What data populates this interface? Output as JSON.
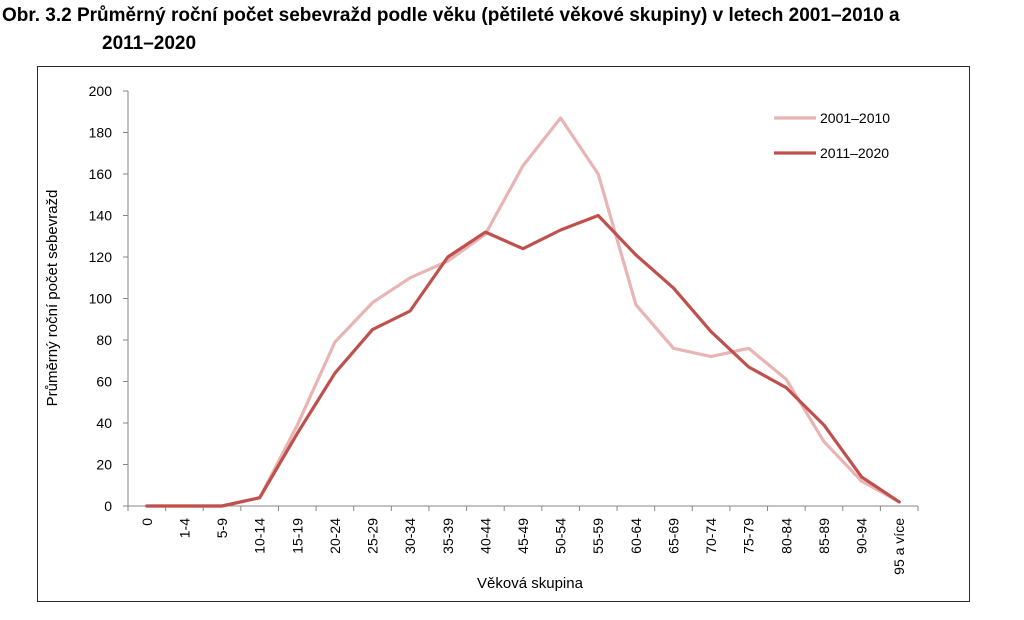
{
  "title_line1": "Obr. 3.2 Průměrný roční počet sebevražd podle věku (pětileté věkové skupiny) v letech 2001–2010 a",
  "title_line2": "2011–2020",
  "chart_data": {
    "type": "line",
    "title": "Obr. 3.2 Průměrný roční počet sebevražd podle věku (pětileté věkové skupiny) v letech 2001–2010 a 2011–2020",
    "xlabel": "Věková skupina",
    "ylabel": "Průměrný roční počet sebevražd",
    "ylim": [
      0,
      200
    ],
    "yticks": [
      0,
      20,
      40,
      60,
      80,
      100,
      120,
      140,
      160,
      180,
      200
    ],
    "grid": false,
    "legend_position": "top-right",
    "categories": [
      "0",
      "1-4",
      "5-9",
      "10-14",
      "15-19",
      "20-24",
      "25-29",
      "30-34",
      "35-39",
      "40-44",
      "45-49",
      "50-54",
      "55-59",
      "60-64",
      "65-69",
      "70-74",
      "75-79",
      "80-84",
      "85-89",
      "90-94",
      "95 a více"
    ],
    "series": [
      {
        "name": "2001–2010",
        "color": "#e8b4b4",
        "values": [
          0,
          0,
          0,
          4,
          39,
          79,
          98,
          110,
          118,
          131,
          164,
          187,
          160,
          97,
          76,
          72,
          76,
          61,
          31,
          12,
          2
        ]
      },
      {
        "name": "2011–2020",
        "color": "#c0504d",
        "values": [
          0,
          0,
          0,
          4,
          35,
          64,
          85,
          94,
          120,
          132,
          124,
          133,
          140,
          121,
          105,
          84,
          67,
          57,
          39,
          14,
          2
        ]
      }
    ]
  }
}
